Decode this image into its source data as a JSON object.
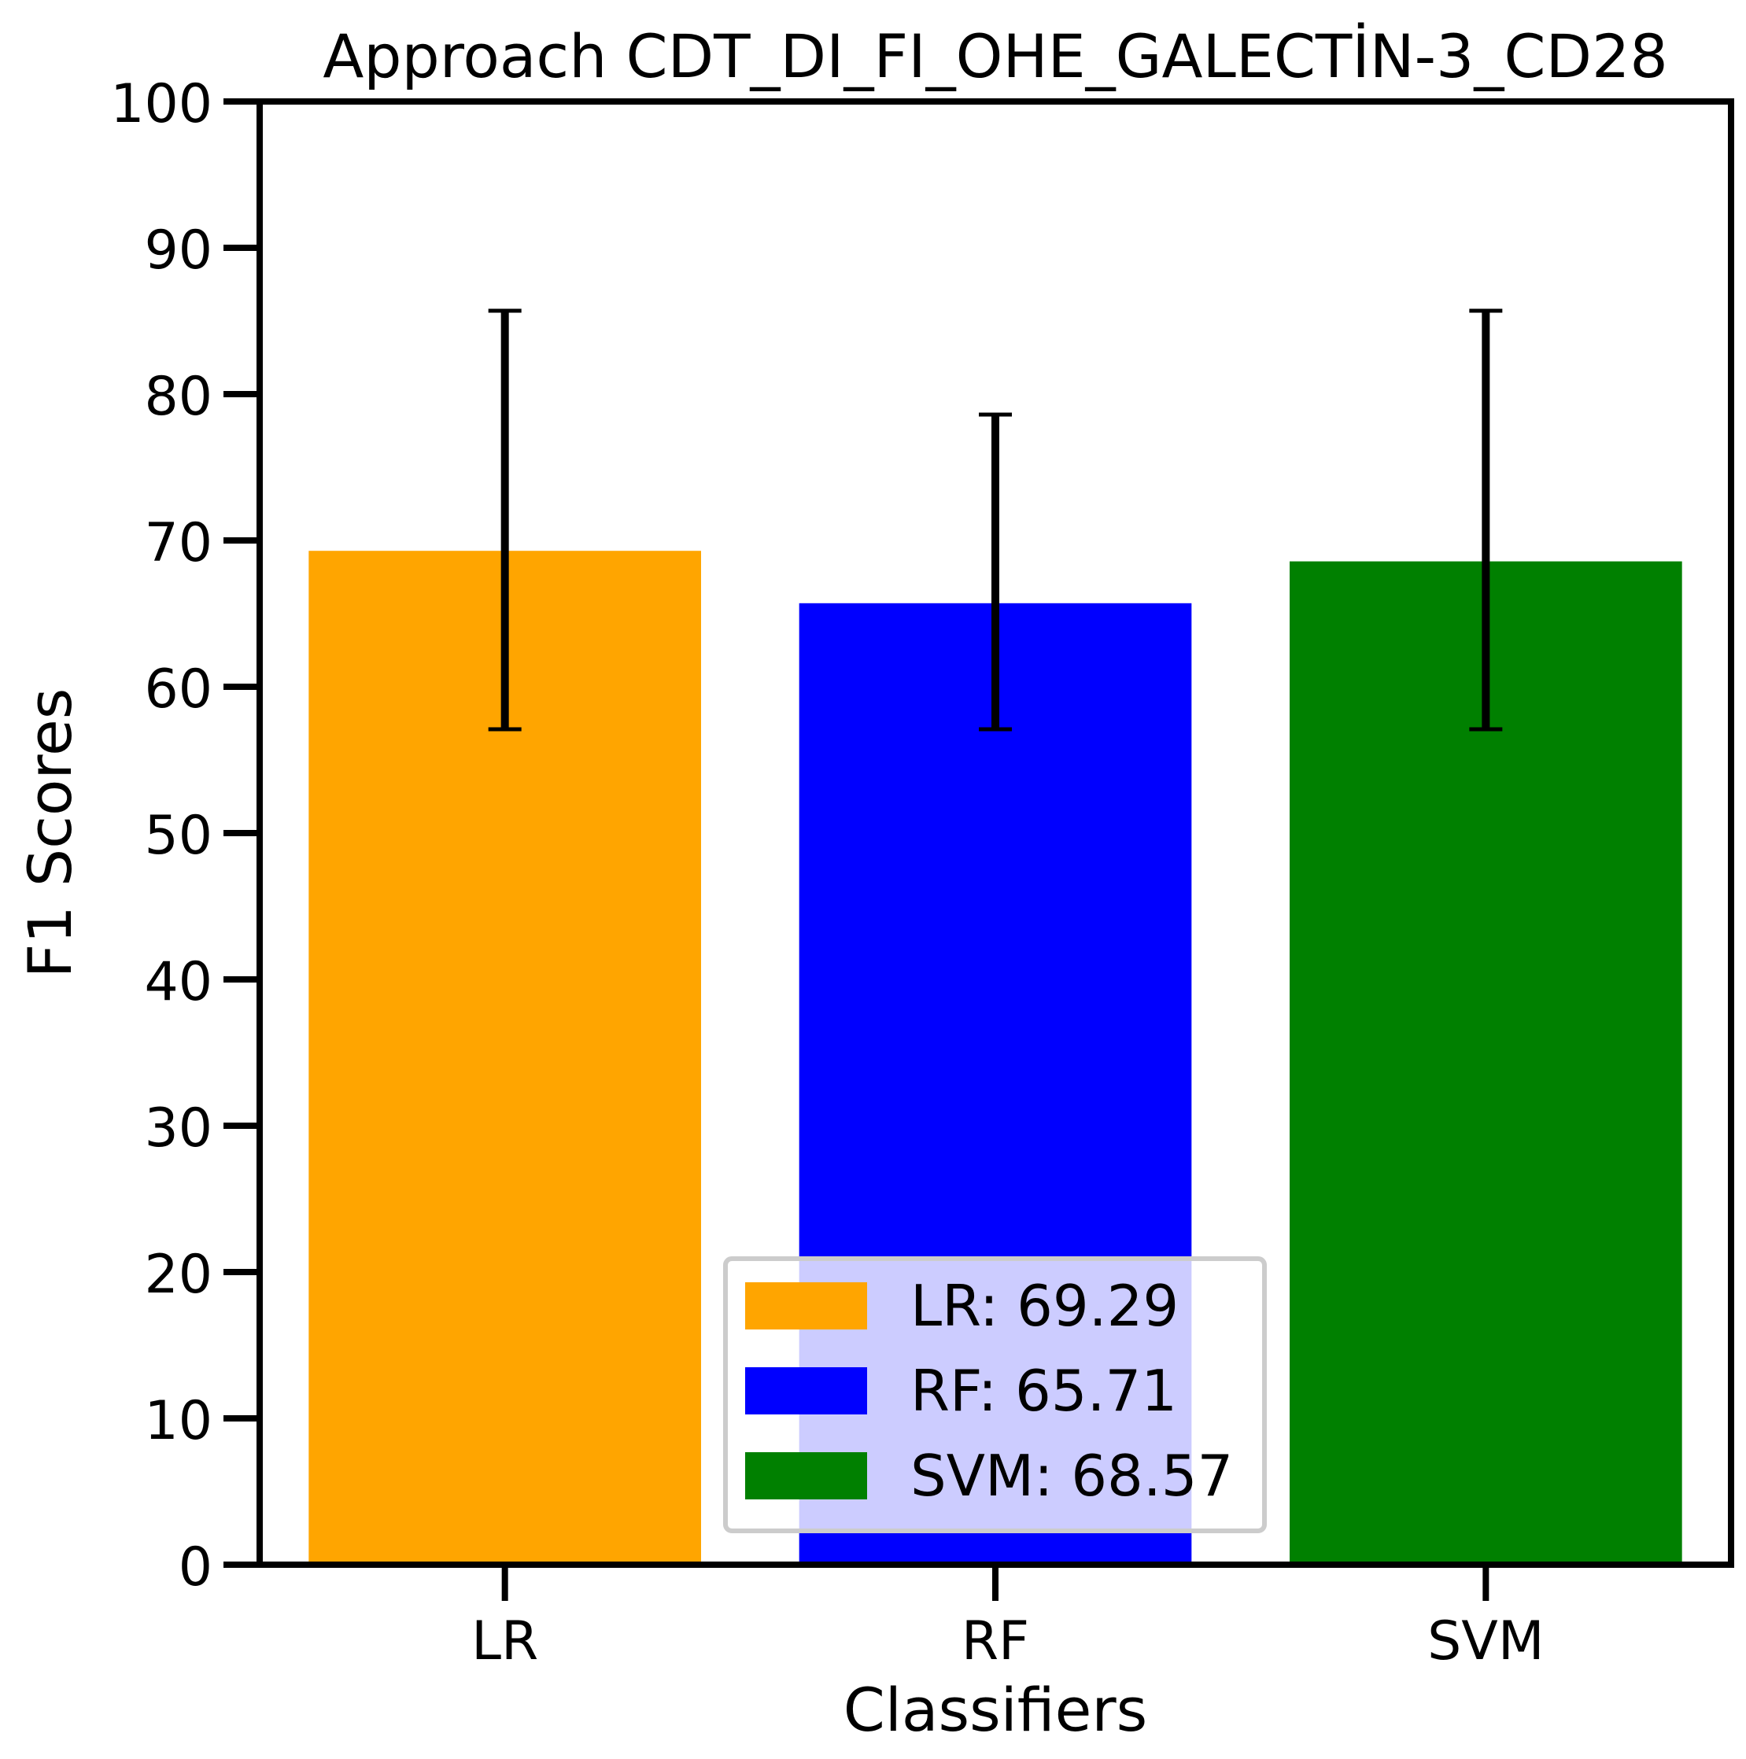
{
  "chart_data": {
    "type": "bar",
    "title": "Approach CDT_DI_FI_OHE_GALECTİN-3_CD28",
    "xlabel": "Classifiers",
    "ylabel": "F1 Scores",
    "categories": [
      "LR",
      "RF",
      "SVM"
    ],
    "values": [
      69.29,
      65.71,
      68.57
    ],
    "error_low": [
      57.1,
      57.1,
      57.1
    ],
    "error_high": [
      85.7,
      78.6,
      85.7
    ],
    "colors": [
      "#FFA500",
      "#0000FF",
      "#008000"
    ],
    "ylim": [
      0,
      100
    ],
    "yticks": [
      0,
      10,
      20,
      30,
      40,
      50,
      60,
      70,
      80,
      90,
      100
    ],
    "grid": false,
    "legend": {
      "placement": "lower-center",
      "entries": [
        "LR: 69.29",
        "RF: 65.71",
        "SVM: 68.57"
      ]
    }
  }
}
